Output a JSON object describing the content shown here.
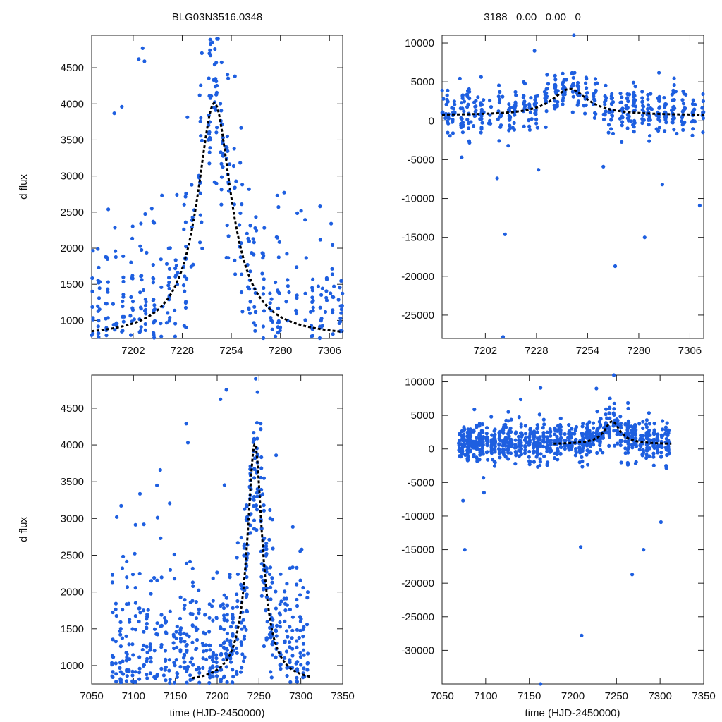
{
  "chart_data": [
    {
      "type": "scatter",
      "panel": "top-left",
      "title": "BLG03N3516.0348",
      "xlabel": "",
      "ylabel": "d flux",
      "xlim": [
        7180,
        7313
      ],
      "ylim": [
        750,
        4950
      ],
      "xticks": [
        7202,
        7228,
        7254,
        7280,
        7306
      ],
      "yticks": [
        1000,
        1500,
        2000,
        2500,
        3000,
        3500,
        4000,
        4500
      ],
      "cloud": {
        "xmin": 7180,
        "xmax": 7313,
        "center": 7245,
        "width": 11,
        "base": 820,
        "amp": 3180,
        "scatter": 620,
        "n": 560,
        "seed": 11
      },
      "outliers": [
        [
          7205,
          4620
        ],
        [
          7207,
          4770
        ],
        [
          7208,
          4590
        ],
        [
          7196,
          3960
        ],
        [
          7192,
          3870
        ],
        [
          7247,
          4900
        ],
        [
          7244,
          4850
        ],
        [
          7291,
          2520
        ],
        [
          7301,
          2580
        ],
        [
          7282,
          2770
        ]
      ],
      "model": {
        "center": 7245,
        "width": 11,
        "base": 760,
        "amp": 3250
      },
      "series": [
        {
          "name": "observed flux",
          "color": "#1E5FE0"
        },
        {
          "name": "model fit",
          "color": "#000000"
        }
      ]
    },
    {
      "type": "scatter",
      "panel": "top-right",
      "title": "3188   0.00   0.00   0",
      "xlabel": "",
      "ylabel": "",
      "xlim": [
        7180,
        7313
      ],
      "ylim": [
        -28000,
        11000
      ],
      "xticks": [
        7202,
        7228,
        7254,
        7280,
        7306
      ],
      "yticks": [
        10000,
        5000,
        0,
        -5000,
        -10000,
        -15000,
        -20000,
        -25000
      ],
      "cloud": {
        "xmin": 7180,
        "xmax": 7313,
        "center": 7245,
        "width": 11,
        "base": 800,
        "amp": 3300,
        "scatter": 1300,
        "n": 520,
        "seed": 23
      },
      "outliers": [
        [
          7208,
          -7400
        ],
        [
          7212,
          -14600
        ],
        [
          7247,
          11000
        ],
        [
          7268,
          -18700
        ],
        [
          7283,
          -15000
        ],
        [
          7227,
          9000
        ],
        [
          7211,
          -27800
        ],
        [
          7311,
          -10900
        ],
        [
          7190,
          -4700
        ],
        [
          7292,
          -8200
        ],
        [
          7262,
          -5900
        ],
        [
          7229,
          -6300
        ]
      ],
      "model": {
        "center": 7245,
        "width": 11,
        "base": 700,
        "amp": 3400
      },
      "series": [
        {
          "name": "observed flux",
          "color": "#1E5FE0"
        },
        {
          "name": "model fit",
          "color": "#000000"
        }
      ]
    },
    {
      "type": "scatter",
      "panel": "bottom-left",
      "title": "",
      "xlabel": "time (HJD-2450000)",
      "ylabel": "d flux",
      "xlim": [
        7050,
        7350
      ],
      "ylim": [
        750,
        4950
      ],
      "xticks": [
        7050,
        7100,
        7150,
        7200,
        7250,
        7300,
        7350
      ],
      "yticks": [
        1000,
        1500,
        2000,
        2500,
        3000,
        3500,
        4000,
        4500
      ],
      "cloud": {
        "xmin": 7075,
        "xmax": 7310,
        "center": 7245,
        "width": 11,
        "base": 820,
        "amp": 3180,
        "scatter": 620,
        "n": 900,
        "seed": 37
      },
      "outliers": [
        [
          7080,
          3020
        ],
        [
          7163,
          4290
        ],
        [
          7204,
          4620
        ],
        [
          7211,
          4750
        ],
        [
          7246,
          4900
        ],
        [
          7165,
          4030
        ],
        [
          7132,
          3660
        ],
        [
          7128,
          3450
        ],
        [
          7301,
          2580
        ]
      ],
      "model": {
        "center": 7245,
        "width": 11,
        "base": 760,
        "amp": 3250,
        "xmin": 7170,
        "xmax": 7313
      },
      "series": [
        {
          "name": "observed flux",
          "color": "#1E5FE0"
        },
        {
          "name": "model fit",
          "color": "#000000"
        }
      ]
    },
    {
      "type": "scatter",
      "panel": "bottom-right",
      "title": "",
      "xlabel": "time (HJD-2450000)",
      "ylabel": "",
      "xlim": [
        7050,
        7350
      ],
      "ylim": [
        -35000,
        11000
      ],
      "xticks": [
        7050,
        7100,
        7150,
        7200,
        7250,
        7300,
        7350
      ],
      "yticks": [
        10000,
        5000,
        0,
        -5000,
        -10000,
        -15000,
        -20000,
        -25000,
        -30000
      ],
      "cloud": {
        "xmin": 7070,
        "xmax": 7310,
        "center": 7245,
        "width": 11,
        "base": 800,
        "amp": 3300,
        "scatter": 1300,
        "n": 900,
        "seed": 51
      },
      "outliers": [
        [
          7163,
          -35000
        ],
        [
          7209,
          -14600
        ],
        [
          7247,
          11000
        ],
        [
          7268,
          -18700
        ],
        [
          7281,
          -15000
        ],
        [
          7227,
          9000
        ],
        [
          7210,
          -27800
        ],
        [
          7301,
          -10900
        ],
        [
          7076,
          -15000
        ],
        [
          7087,
          5900
        ],
        [
          7163,
          9100
        ],
        [
          7074,
          -7700
        ],
        [
          7098,
          -6500
        ]
      ],
      "model": {
        "center": 7245,
        "width": 11,
        "base": 700,
        "amp": 3400,
        "xmin": 7178,
        "xmax": 7313
      },
      "series": [
        {
          "name": "observed flux",
          "color": "#1E5FE0"
        },
        {
          "name": "model fit",
          "color": "#000000"
        }
      ]
    }
  ]
}
